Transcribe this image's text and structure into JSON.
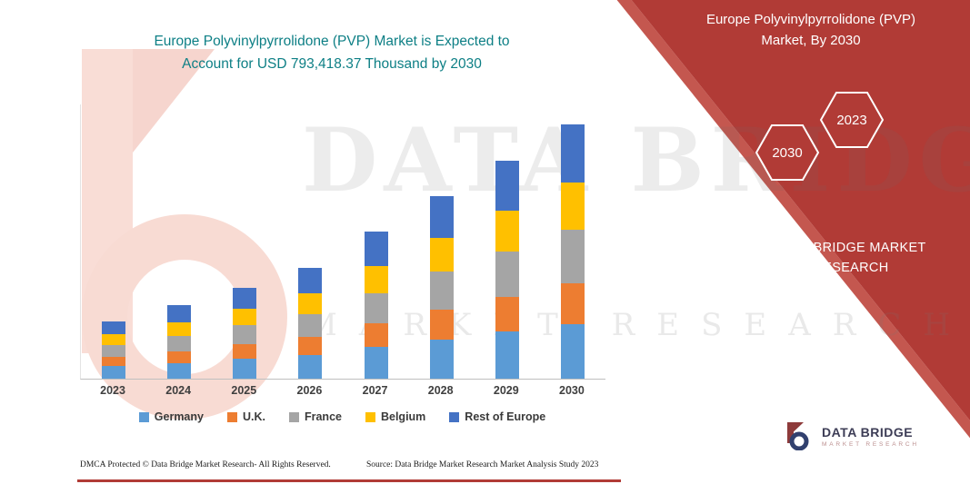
{
  "title": {
    "text": "Europe Polyvinylpyrrolidone (PVP) Market is Expected to\nAccount for USD 793,418.37 Thousand by 2030"
  },
  "panel": {
    "color": "#b13b36",
    "title": "Europe Polyvinylpyrrolidone (PVP)\nMarket, By 2030",
    "hexagons": [
      {
        "year": "2030"
      },
      {
        "year": "2023"
      }
    ],
    "brand": "DATA BRIDGE MARKET\nRESEARCH"
  },
  "watermark": {
    "line1": "DATA BRIDGE",
    "line2": "MARKET RESEARCH"
  },
  "chart_data": {
    "type": "bar",
    "stacked": true,
    "title": "Europe Polyvinylpyrrolidone (PVP) Market is Expected to Account for USD 793,418.37 Thousand by 2030",
    "categories": [
      "2023",
      "2024",
      "2025",
      "2026",
      "2027",
      "2028",
      "2029",
      "2030"
    ],
    "series": [
      {
        "name": "Germany",
        "color": "#5B9BD5",
        "values": [
          38500,
          49450,
          61060,
          74600,
          98470,
          122770,
          146200,
          170600
        ]
      },
      {
        "name": "U.K.",
        "color": "#ED7D31",
        "values": [
          28820,
          37030,
          45720,
          55870,
          73740,
          91930,
          109480,
          127740
        ]
      },
      {
        "name": "France",
        "color": "#A5A5A5",
        "values": [
          37230,
          47840,
          59070,
          72180,
          95260,
          118770,
          141440,
          165030
        ]
      },
      {
        "name": "Belgium",
        "color": "#FFC000",
        "values": [
          33290,
          42780,
          52820,
          64540,
          85190,
          106210,
          126480,
          147570
        ]
      },
      {
        "name": "Rest of Europe",
        "color": "#4472C4",
        "values": [
          41160,
          52900,
          65330,
          79810,
          105340,
          131320,
          156400,
          182478.37
        ]
      }
    ],
    "xlabel": "",
    "ylabel": "",
    "ylim": [
      0,
      850000
    ],
    "grid": false,
    "legend_position": "bottom",
    "total_2030_usd_thousand": 793418.37
  },
  "footer": {
    "left": "DMCA Protected © Data Bridge Market Research-  All Rights Reserved.",
    "source": "Source: Data Bridge Market Research  Market Analysis Study 2023"
  },
  "logo": {
    "name": "DATA BRIDGE",
    "subtitle": "MARKET RESEARCH"
  }
}
